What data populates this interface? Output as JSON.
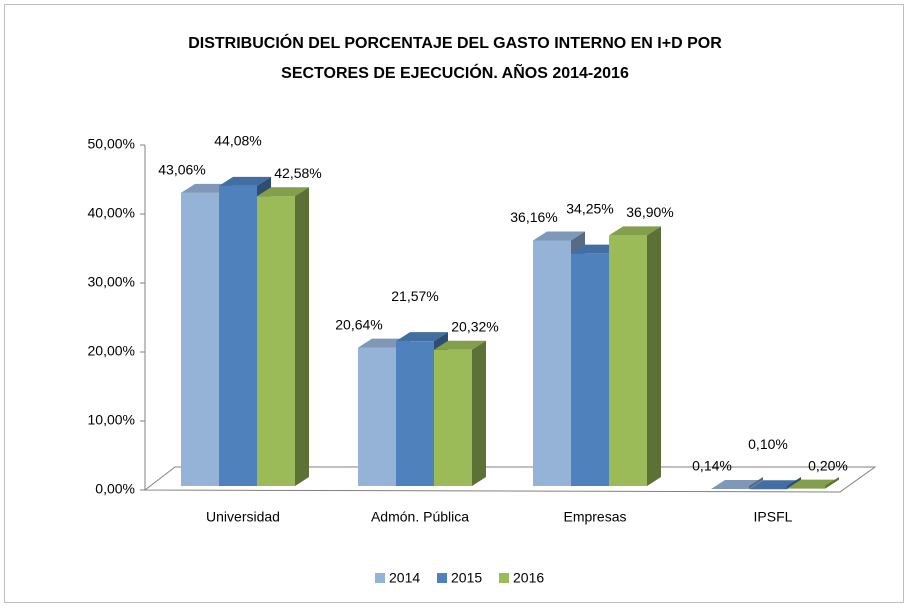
{
  "chart_data": {
    "type": "bar3d",
    "title": [
      "DISTRIBUCIÓN DEL PORCENTAJE DEL GASTO INTERNO EN I+D POR",
      "SECTORES DE EJECUCIÓN. AÑOS 2014-2016"
    ],
    "categories": [
      "Universidad",
      "Admón. Pública",
      "Empresas",
      "IPSFL"
    ],
    "series": [
      {
        "name": "2014",
        "color": "#95b3d7",
        "values": [
          43.06,
          20.64,
          36.16,
          0.14
        ],
        "value_labels": [
          "43,06%",
          "20,64%",
          "36,16%",
          "0,14%"
        ]
      },
      {
        "name": "2015",
        "color": "#4f81bd",
        "values": [
          44.08,
          21.57,
          34.25,
          0.1
        ],
        "value_labels": [
          "44,08%",
          "21,57%",
          "34,25%",
          "0,10%"
        ]
      },
      {
        "name": "2016",
        "color": "#9bbb59",
        "values": [
          42.58,
          20.32,
          36.9,
          0.2
        ],
        "value_labels": [
          "42,58%",
          "20,32%",
          "36,90%",
          "0,20%"
        ]
      }
    ],
    "ylim": [
      0,
      50
    ],
    "yticks": [
      {
        "value": 0,
        "label": "0,00%"
      },
      {
        "value": 10,
        "label": "10,00%"
      },
      {
        "value": 20,
        "label": "20,00%"
      },
      {
        "value": 30,
        "label": "30,00%"
      },
      {
        "value": 40,
        "label": "40,00%"
      },
      {
        "value": 50,
        "label": "50,00%"
      }
    ],
    "legend": "bottom"
  }
}
